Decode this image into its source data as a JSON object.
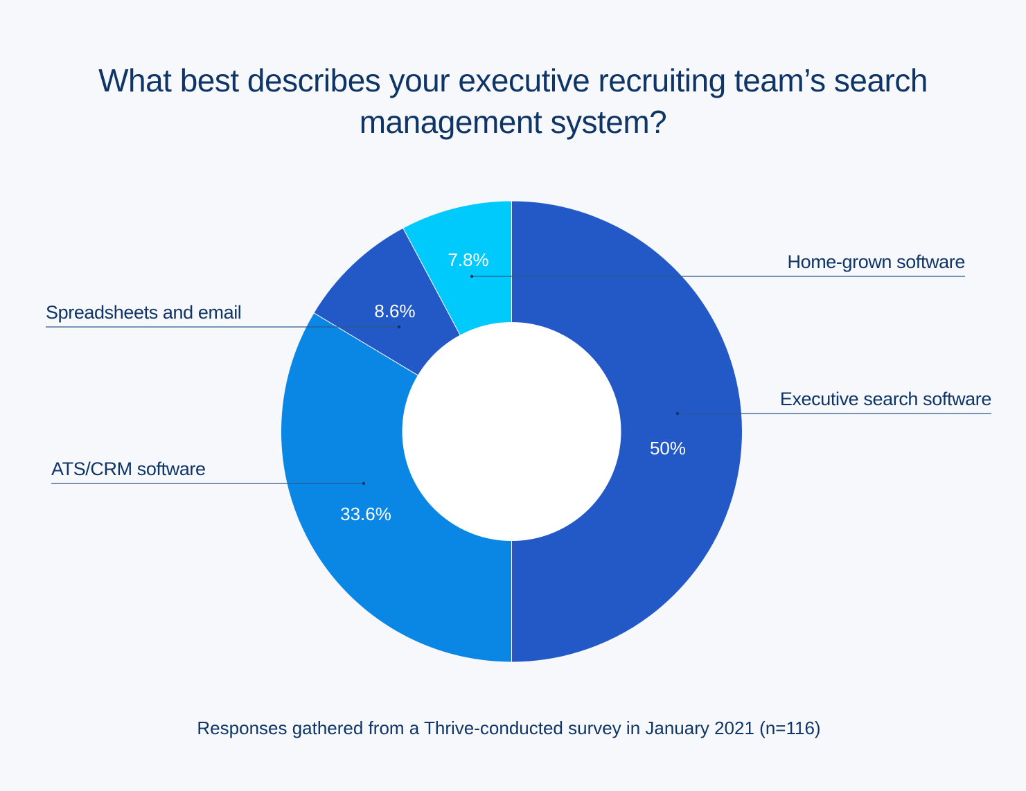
{
  "chart_data": {
    "type": "pie",
    "title": "What best describes your executive recruiting team’s search management system?",
    "title_lines": [
      "What best describes your executive recruiting team’s search",
      "management system?"
    ],
    "donut": true,
    "categories": [
      "Executive search software",
      "ATS/CRM software",
      "Spreadsheets and email",
      "Home-grown software"
    ],
    "values": [
      50,
      33.6,
      8.6,
      7.8
    ],
    "value_labels": [
      "50%",
      "33.6%",
      "8.6%",
      "7.8%"
    ],
    "colors": [
      "#2358c7",
      "#0a87e4",
      "#2358c7",
      "#00c9fb"
    ],
    "start_angle": "12 o'clock",
    "direction": "clockwise",
    "legend": "callout labels with leader lines",
    "footnote": "Responses gathered from a Thrive-conducted survey in January 2021 (n=116)"
  },
  "colors": {
    "background": "#f6f8fc",
    "text": "#0e3566",
    "leader_line": "#2a5a8a",
    "hole": "#ffffff",
    "value_label": "#ffffff"
  }
}
